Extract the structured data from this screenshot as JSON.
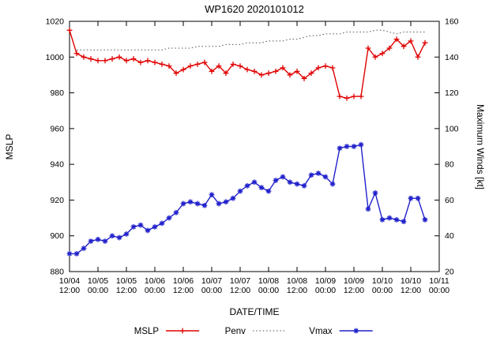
{
  "chart_data": {
    "type": "line",
    "title": "WP1620 2020101012",
    "xlabel": "DATE/TIME",
    "ylabel_left": "MSLP",
    "ylabel_right": "Maximum Winds [kt]",
    "ylim_left": [
      880,
      1020
    ],
    "ylim_right": [
      20,
      160
    ],
    "yticks_left": [
      880,
      900,
      920,
      940,
      960,
      980,
      1000,
      1020
    ],
    "yticks_right": [
      20,
      40,
      60,
      80,
      100,
      120,
      140,
      160
    ],
    "x_total_hours": 156,
    "x_step_hours": 3,
    "grid": false,
    "legend_position": "bottom-center",
    "xticks": [
      {
        "hours": 0,
        "line1": "10/04",
        "line2": "12:00"
      },
      {
        "hours": 12,
        "line1": "10/05",
        "line2": "00:00"
      },
      {
        "hours": 24,
        "line1": "10/05",
        "line2": "12:00"
      },
      {
        "hours": 36,
        "line1": "10/06",
        "line2": "00:00"
      },
      {
        "hours": 48,
        "line1": "10/06",
        "line2": "12:00"
      },
      {
        "hours": 60,
        "line1": "10/07",
        "line2": "00:00"
      },
      {
        "hours": 72,
        "line1": "10/07",
        "line2": "12:00"
      },
      {
        "hours": 84,
        "line1": "10/08",
        "line2": "00:00"
      },
      {
        "hours": 96,
        "line1": "10/08",
        "line2": "12:00"
      },
      {
        "hours": 108,
        "line1": "10/09",
        "line2": "00:00"
      },
      {
        "hours": 120,
        "line1": "10/09",
        "line2": "12:00"
      },
      {
        "hours": 132,
        "line1": "10/10",
        "line2": "00:00"
      },
      {
        "hours": 144,
        "line1": "10/10",
        "line2": "12:00"
      },
      {
        "hours": 156,
        "line1": "10/11",
        "line2": "00:00"
      }
    ],
    "series": [
      {
        "name": "MSLP",
        "axis": "left",
        "color": "#e00000",
        "marker": "plus",
        "line_style": "solid",
        "values": [
          1015,
          1002,
          1000,
          999,
          998,
          998,
          999,
          1000,
          998,
          999,
          997,
          998,
          997,
          996,
          995,
          991,
          993,
          995,
          996,
          997,
          992,
          995,
          991,
          996,
          995,
          993,
          992,
          990,
          991,
          992,
          994,
          990,
          992,
          988,
          991,
          994,
          995,
          994,
          978,
          977,
          978,
          978,
          1005,
          1000,
          1002,
          1005,
          1010,
          1006,
          1009,
          1000,
          1008
        ]
      },
      {
        "name": "Penv",
        "axis": "left",
        "color": "#555555",
        "marker": "none",
        "line_style": "dotted",
        "values": [
          null,
          1004,
          1004,
          1004,
          1004,
          1004,
          1004,
          1004,
          1004,
          1004,
          1004,
          1004,
          1004,
          1004,
          1005,
          1005,
          1005,
          1005,
          1006,
          1006,
          1006,
          1006,
          1007,
          1007,
          1007,
          1008,
          1008,
          1008,
          1009,
          1009,
          1009,
          1010,
          1010,
          1011,
          1012,
          1012,
          1013,
          1013,
          1013,
          1014,
          1014,
          1014,
          1014,
          1015,
          1015,
          1014,
          1013,
          1014,
          1014,
          1014,
          1014
        ]
      },
      {
        "name": "Vmax",
        "axis": "right",
        "color": "#2020cc",
        "marker": "star",
        "line_style": "solid",
        "values": [
          30,
          30,
          33,
          37,
          38,
          37,
          40,
          39,
          41,
          45,
          46,
          43,
          45,
          47,
          50,
          53,
          58,
          59,
          58,
          57,
          63,
          58,
          59,
          61,
          65,
          68,
          70,
          67,
          65,
          71,
          73,
          70,
          69,
          68,
          74,
          75,
          73,
          69,
          89,
          90,
          90,
          91,
          55,
          64,
          49,
          50,
          49,
          48,
          61,
          61,
          49
        ]
      }
    ]
  }
}
